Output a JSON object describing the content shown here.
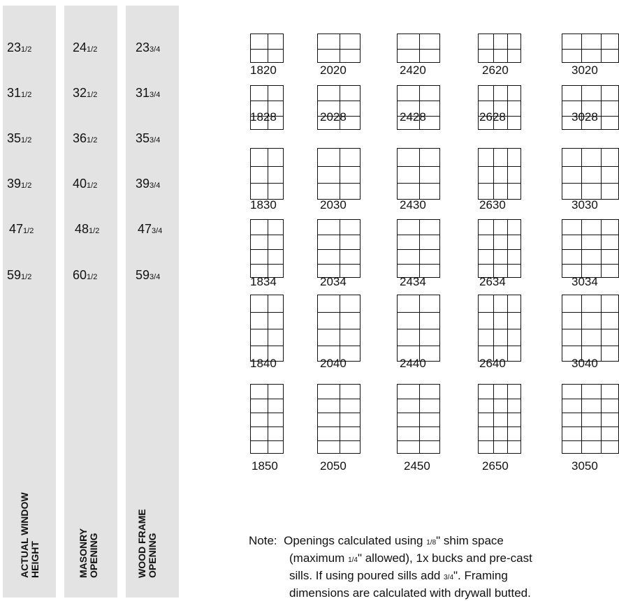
{
  "columns": [
    {
      "label_line1": "ACTUAL WINDOW",
      "label_line2": "HEIGHT",
      "values": [
        [
          "23",
          "1/2"
        ],
        [
          "31",
          "1/2"
        ],
        [
          "35",
          "1/2"
        ],
        [
          "39",
          "1/2"
        ],
        [
          "47",
          "1/2"
        ],
        [
          "59",
          "1/2"
        ]
      ]
    },
    {
      "label_line1": "MASONRY",
      "label_line2": "OPENING",
      "values": [
        [
          "24",
          "1/2"
        ],
        [
          "32",
          "1/2"
        ],
        [
          "36",
          "1/2"
        ],
        [
          "40",
          "1/2"
        ],
        [
          "48",
          "1/2"
        ],
        [
          "60",
          "1/2"
        ]
      ]
    },
    {
      "label_line1": "WOOD FRAME",
      "label_line2": "OPENING",
      "values": [
        [
          "23",
          "3/4"
        ],
        [
          "31",
          "3/4"
        ],
        [
          "35",
          "3/4"
        ],
        [
          "39",
          "3/4"
        ],
        [
          "47",
          "3/4"
        ],
        [
          "59",
          "3/4"
        ]
      ]
    }
  ],
  "windows": {
    "rows": [
      [
        "1820",
        "2020",
        "2420",
        "2620",
        "3020"
      ],
      [
        "1828",
        "2028",
        "2428",
        "2628",
        "3028"
      ],
      [
        "1830",
        "2030",
        "2430",
        "2630",
        "3030"
      ],
      [
        "1834",
        "2034",
        "2434",
        "2634",
        "3034"
      ],
      [
        "1840",
        "2040",
        "2440",
        "2640",
        "3040"
      ],
      [
        "1850",
        "2050",
        "2450",
        "2650",
        "3050"
      ]
    ]
  },
  "note": {
    "lead": "Note:",
    "l1a": "Openings calculated using ",
    "l1f": "1/8",
    "l1b": "\" shim space",
    "l2a": "(maximum ",
    "l2f": "1/4",
    "l2b": "\" allowed), 1x bucks and pre-cast",
    "l3a": "sills. If using poured sills add ",
    "l3f": "3/4",
    "l3b": "\". Framing",
    "l4": "dimensions are calculated with drywall butted."
  }
}
